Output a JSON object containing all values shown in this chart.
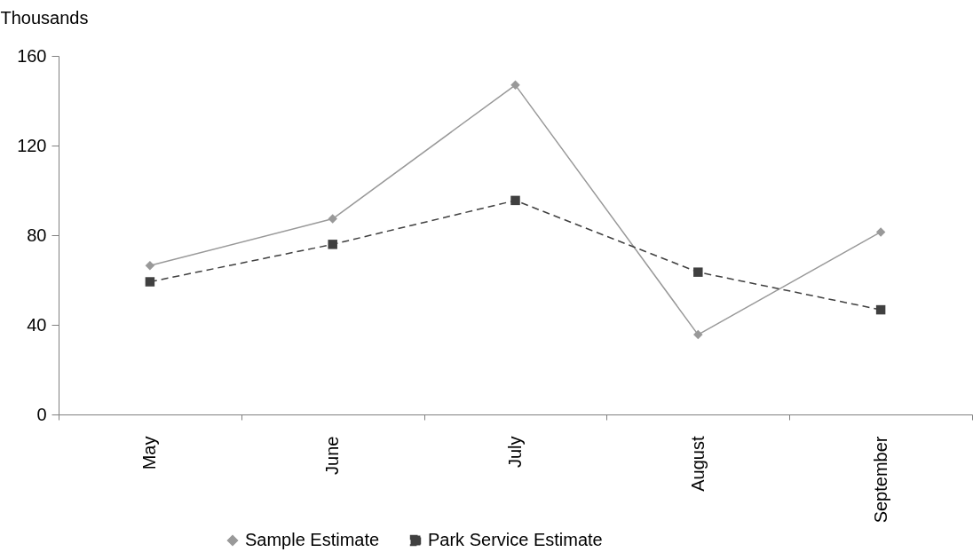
{
  "chart_data": {
    "type": "line",
    "ylabel": "Thousands",
    "categories": [
      "May",
      "June",
      "July",
      "August",
      "September"
    ],
    "series": [
      {
        "name": "Sample Estimate",
        "color": "#999999",
        "marker": "diamond",
        "line_style": "solid",
        "values": [
          66.4,
          87.3,
          147,
          35.6,
          81.4
        ]
      },
      {
        "name": "Park Service Estimate",
        "color": "#404040",
        "marker": "square",
        "line_style": "dashed",
        "values": [
          59.2,
          75.9,
          95.5,
          63.5,
          46.7
        ]
      }
    ],
    "ylim": [
      0,
      160
    ],
    "yticks": [
      0,
      40,
      80,
      120,
      160
    ],
    "grid": false,
    "legend": "bottom"
  }
}
